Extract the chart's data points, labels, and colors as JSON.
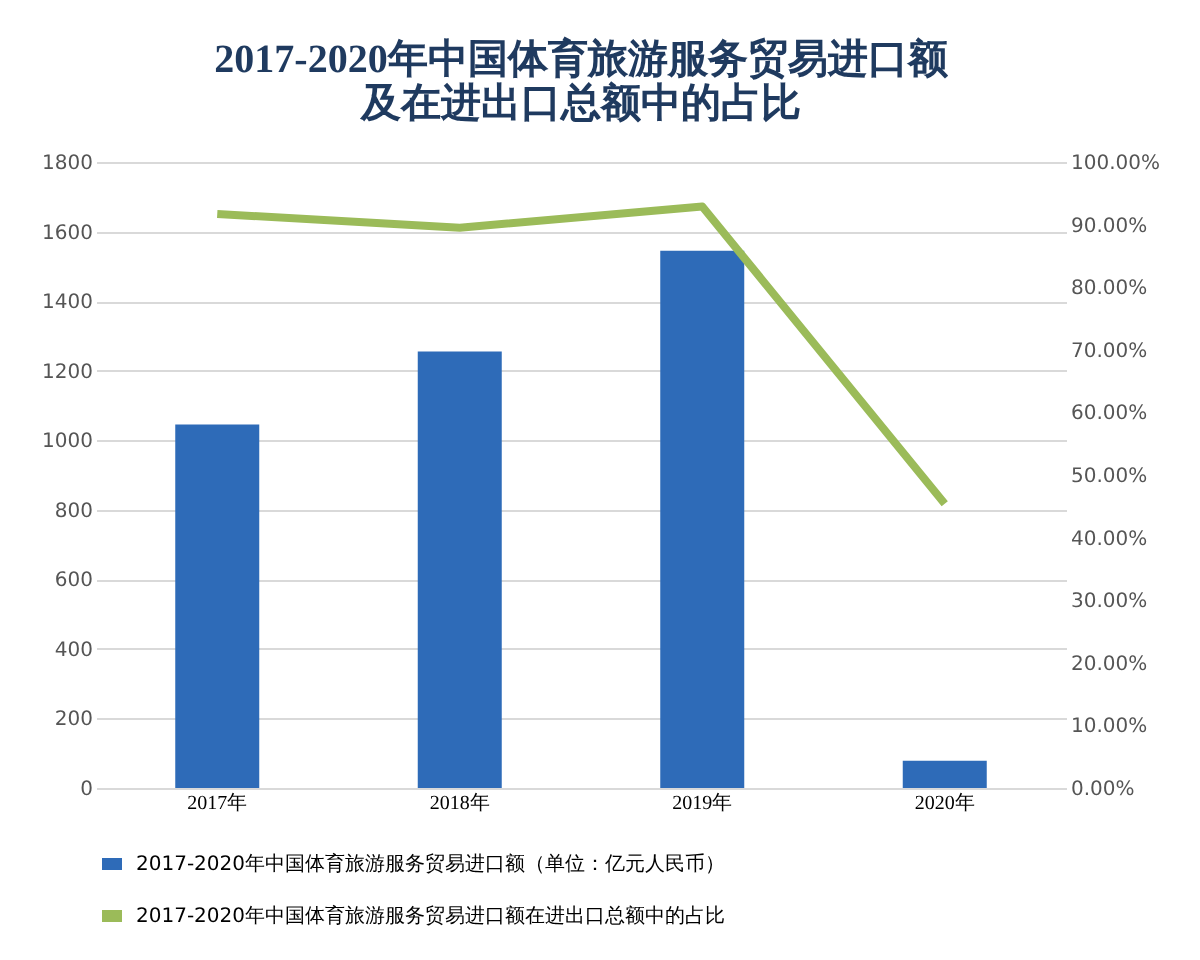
{
  "chart_data": {
    "type": "bar",
    "title": "2017-2020年中国体育旅游服务贸易进口额及在进出口总额中的占比",
    "categories": [
      "2017年",
      "2018年",
      "2019年",
      "2020年"
    ],
    "series": [
      {
        "name": "2017-2020年中国体育旅游服务贸易进口额（单位：亿元人民币）",
        "color": "#2e6bb8",
        "values": [
          1045,
          1255,
          1545,
          78
        ]
      },
      {
        "name": "2017-2020年中国体育旅游服务贸易进口额在进出口总额中的占比",
        "type": "line",
        "axis": "y2",
        "color": "#9bbb59",
        "values": [
          91.7,
          89.5,
          92.9,
          45.4
        ]
      }
    ],
    "ylim": [
      0,
      1800
    ],
    "yticks": [
      0,
      200,
      400,
      600,
      800,
      1000,
      1200,
      1400,
      1600,
      1800
    ],
    "y2lim": [
      0,
      100
    ],
    "y2ticks": [
      {
        "value": 0,
        "label": "0.00%"
      },
      {
        "value": 10,
        "label": "10.00%"
      },
      {
        "value": 20,
        "label": "20.00%"
      },
      {
        "value": 30,
        "label": "30.00%"
      },
      {
        "value": 40,
        "label": "40.00%"
      },
      {
        "value": 50,
        "label": "50.00%"
      },
      {
        "value": 60,
        "label": "60.00%"
      },
      {
        "value": 70,
        "label": "70.00%"
      },
      {
        "value": 80,
        "label": "80.00%"
      },
      {
        "value": 90,
        "label": "90.00%"
      },
      {
        "value": 100,
        "label": "100.00%"
      }
    ],
    "grid": "y",
    "legend": "bottom",
    "marker": "none",
    "line_style": "solid"
  }
}
